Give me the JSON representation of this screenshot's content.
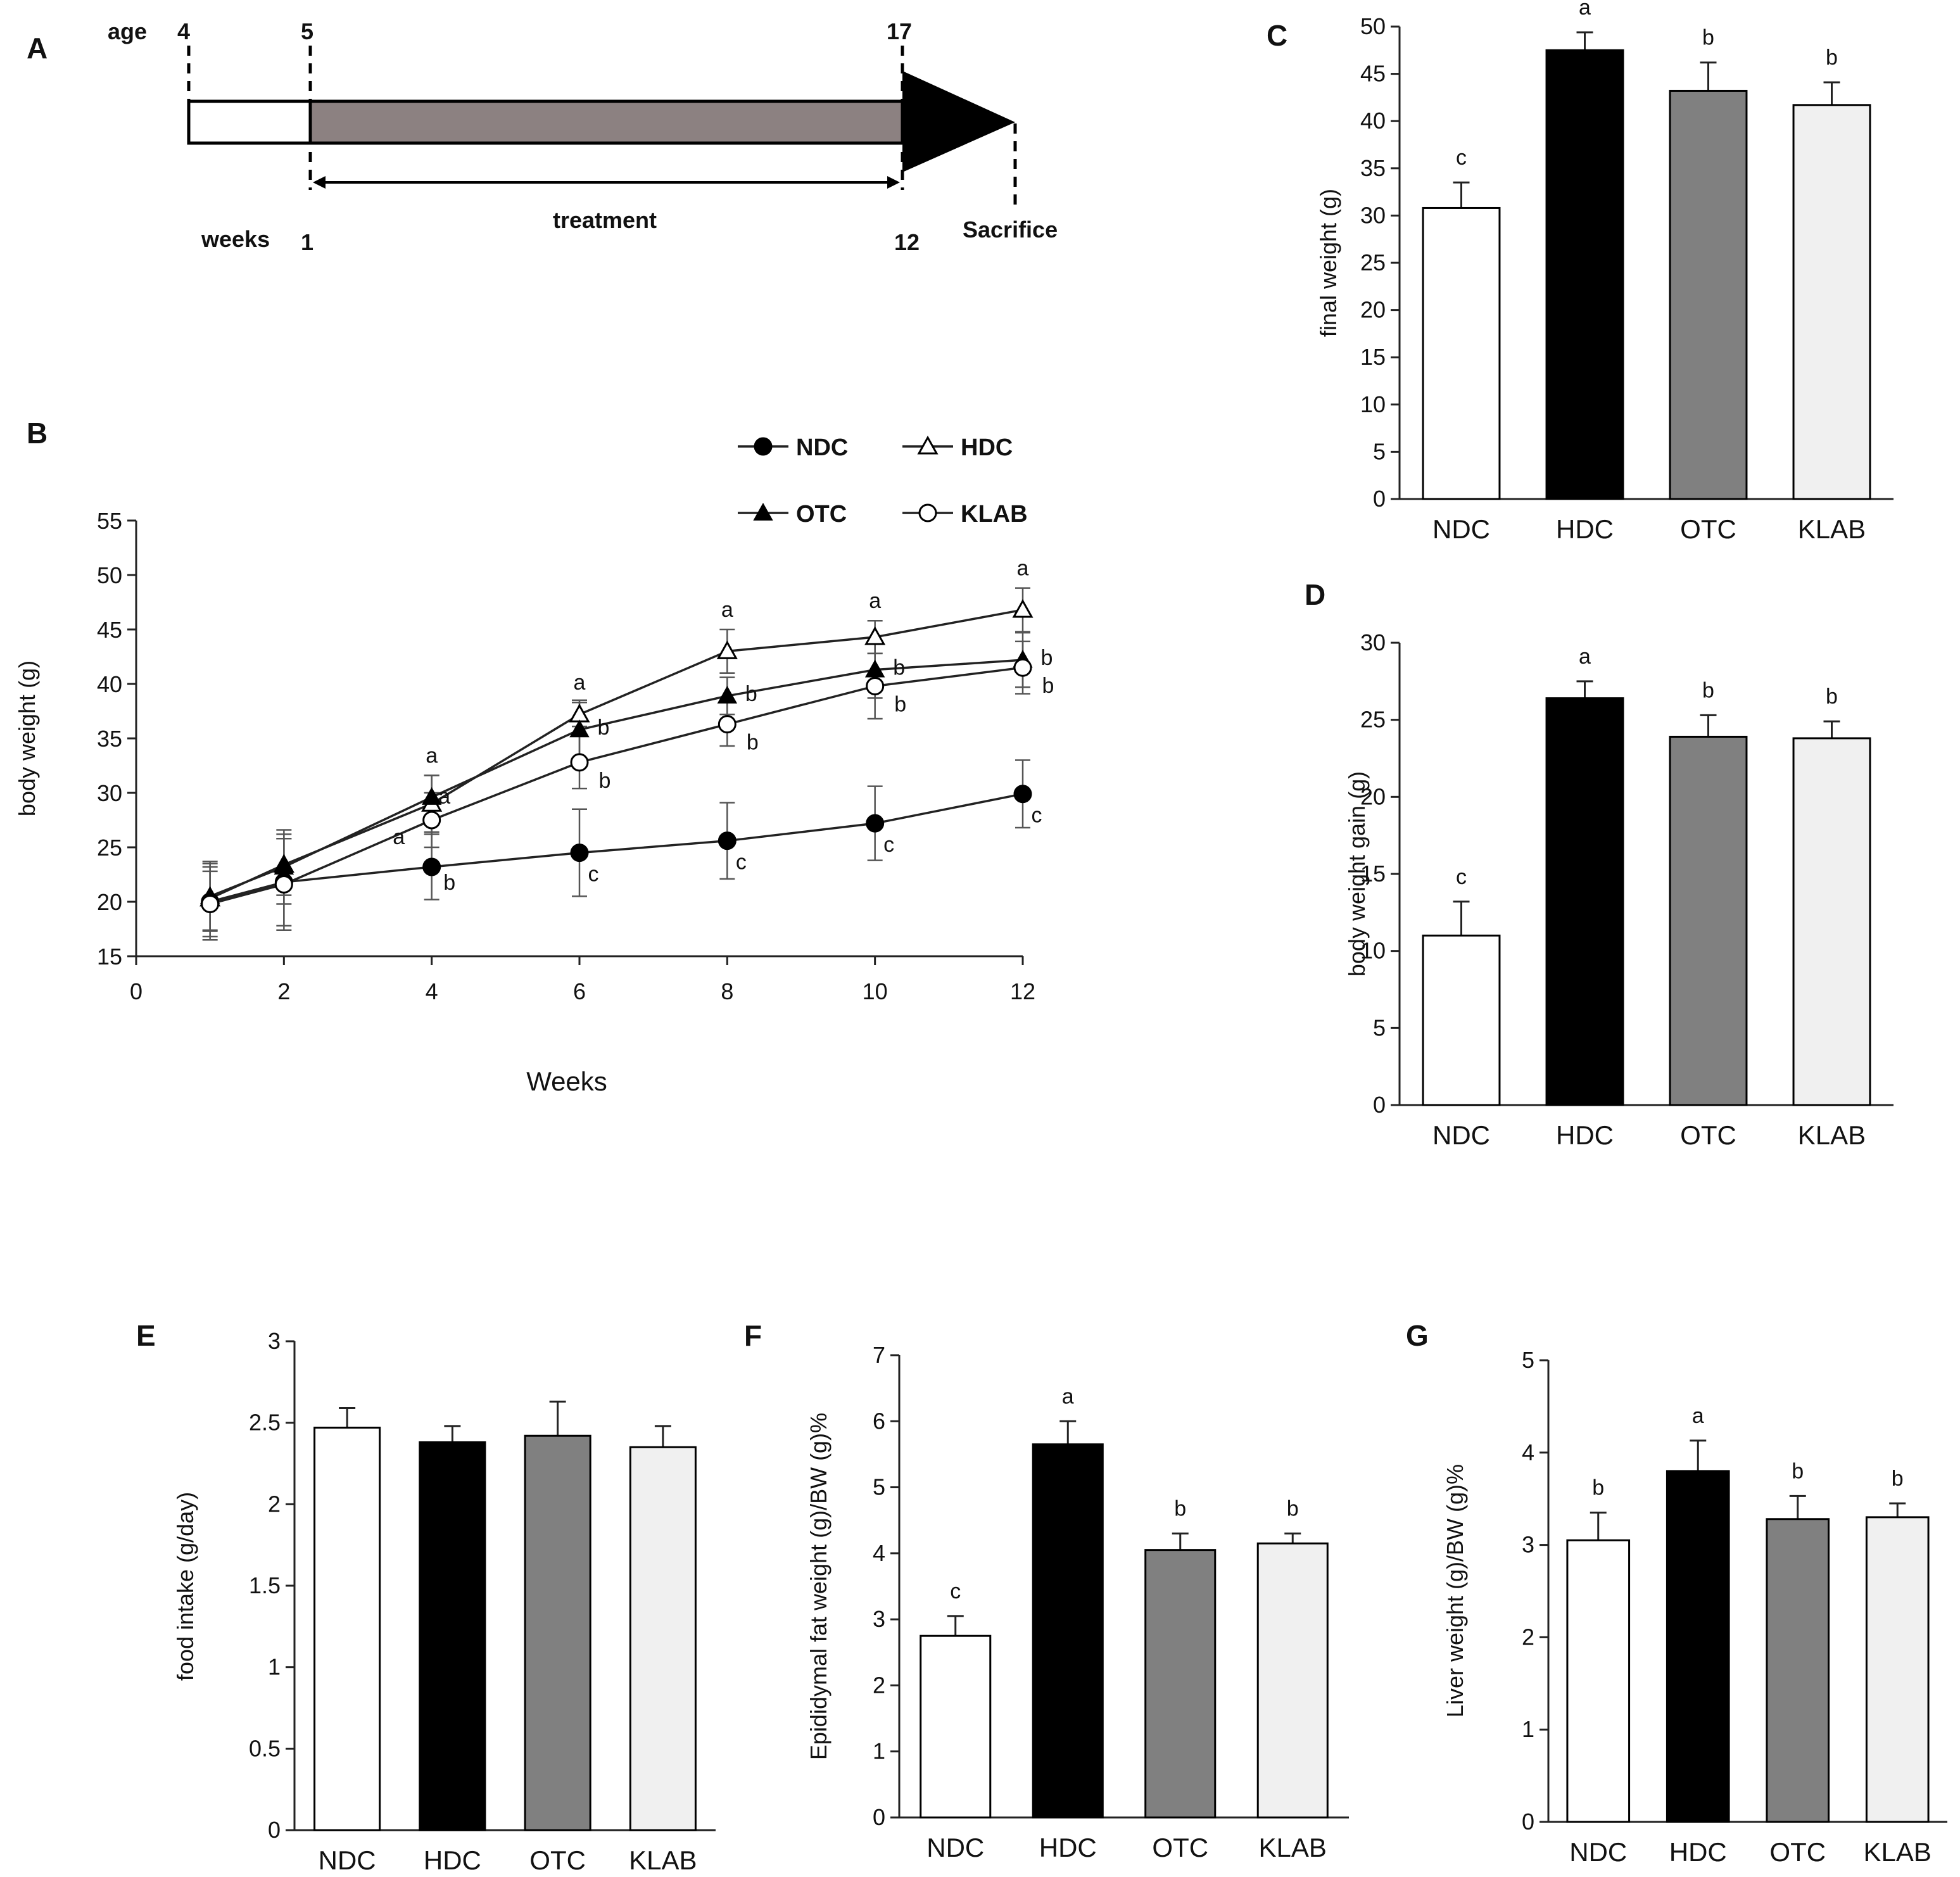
{
  "colors": {
    "NDC": "#ffffff",
    "HDC": "#000000",
    "OTC": "#808080",
    "KLAB": "#f0f0f0",
    "treatment_bar": "#8c8181"
  },
  "timeline": {
    "panel": "A",
    "age_label": "age",
    "age_start": "4",
    "age_treat": "5",
    "age_end": "17",
    "weeks_label": "weeks",
    "week_start": "1",
    "week_end": "12",
    "treatment_label": "treatment",
    "sacrifice_label": "Sacrifice"
  },
  "chart_data": [
    {
      "panel": "B",
      "type": "line",
      "xlabel": "Weeks",
      "ylabel": "body weight (g)",
      "xlim": [
        0,
        12
      ],
      "ylim": [
        15,
        55
      ],
      "xticks": [
        "0",
        "2",
        "4",
        "6",
        "8",
        "10",
        "12"
      ],
      "yticks": [
        "15",
        "20",
        "25",
        "30",
        "35",
        "40",
        "45",
        "50",
        "55"
      ],
      "x": [
        1,
        2,
        4,
        6,
        8,
        10,
        12
      ],
      "legend": [
        "NDC",
        "HDC",
        "OTC",
        "KLAB"
      ],
      "series": [
        {
          "name": "NDC",
          "marker": "circle-filled",
          "values": [
            20.0,
            21.8,
            23.2,
            24.5,
            25.6,
            27.2,
            29.9
          ],
          "err": [
            3.5,
            4.0,
            3.0,
            4.0,
            3.5,
            3.4,
            3.1
          ],
          "labels": [
            "",
            "",
            "b",
            "c",
            "c",
            "c",
            "c"
          ]
        },
        {
          "name": "HDC",
          "marker": "triangle-open",
          "values": [
            20.3,
            23.4,
            29.0,
            37.2,
            43.0,
            44.3,
            46.8
          ],
          "err": [
            2.9,
            2.8,
            2.6,
            1.1,
            2.0,
            1.5,
            2.0
          ],
          "labels": [
            "",
            "",
            "a",
            "a",
            "a",
            "a",
            "a"
          ]
        },
        {
          "name": "OTC",
          "marker": "triangle-filled",
          "values": [
            20.5,
            23.2,
            29.6,
            35.8,
            38.9,
            41.3,
            42.2
          ],
          "err": [
            3.2,
            3.4,
            2.0,
            2.7,
            1.7,
            2.6,
            2.5
          ],
          "labels": [
            "",
            "",
            "a",
            "b",
            "b",
            "b",
            "b"
          ]
        },
        {
          "name": "KLAB",
          "marker": "circle-open",
          "values": [
            19.8,
            21.6,
            27.5,
            32.8,
            36.3,
            39.8,
            41.5
          ],
          "err": [
            3.0,
            4.2,
            2.5,
            2.4,
            2.0,
            3.0,
            2.4
          ],
          "labels": [
            "",
            "",
            "a",
            "b",
            "b",
            "b",
            "b"
          ]
        }
      ]
    },
    {
      "panel": "C",
      "type": "bar",
      "ylabel": "final weight (g)",
      "categories": [
        "NDC",
        "HDC",
        "OTC",
        "KLAB"
      ],
      "values": [
        30.8,
        47.5,
        43.2,
        41.7
      ],
      "err": [
        2.7,
        1.9,
        3.0,
        2.4
      ],
      "labels": [
        "c",
        "a",
        "b",
        "b"
      ],
      "ylim": [
        0,
        50
      ],
      "ytick_step": 5,
      "yticks": [
        "0",
        "5",
        "10",
        "15",
        "20",
        "25",
        "30",
        "35",
        "40",
        "45",
        "50"
      ]
    },
    {
      "panel": "D",
      "type": "bar",
      "ylabel": "body weight gain (g)",
      "categories": [
        "NDC",
        "HDC",
        "OTC",
        "KLAB"
      ],
      "values": [
        11.0,
        26.4,
        23.9,
        23.8
      ],
      "err": [
        2.2,
        1.1,
        1.4,
        1.1
      ],
      "labels": [
        "c",
        "a",
        "b",
        "b"
      ],
      "ylim": [
        0,
        30
      ],
      "ytick_step": 5,
      "yticks": [
        "0",
        "5",
        "10",
        "15",
        "20",
        "25",
        "30"
      ]
    },
    {
      "panel": "E",
      "type": "bar",
      "ylabel": "food intake (g/day)",
      "categories": [
        "NDC",
        "HDC",
        "OTC",
        "KLAB"
      ],
      "values": [
        2.47,
        2.38,
        2.42,
        2.35
      ],
      "err": [
        0.12,
        0.1,
        0.21,
        0.13
      ],
      "labels": [
        "",
        "",
        "",
        ""
      ],
      "ylim": [
        0,
        3
      ],
      "ytick_step": 0.5,
      "yticks": [
        "0",
        "0.5",
        "1",
        "1.5",
        "2",
        "2.5",
        "3"
      ]
    },
    {
      "panel": "F",
      "type": "bar",
      "ylabel": "Epididymal fat weight (g)/BW (g)%",
      "categories": [
        "NDC",
        "HDC",
        "OTC",
        "KLAB"
      ],
      "values": [
        2.75,
        5.65,
        4.05,
        4.15
      ],
      "err": [
        0.3,
        0.35,
        0.25,
        0.15
      ],
      "labels": [
        "c",
        "a",
        "b",
        "b"
      ],
      "ylim": [
        0,
        7
      ],
      "ytick_step": 1,
      "yticks": [
        "0",
        "1",
        "2",
        "3",
        "4",
        "5",
        "6",
        "7"
      ]
    },
    {
      "panel": "G",
      "type": "bar",
      "ylabel": "Liver weight (g)/BW (g)%",
      "categories": [
        "NDC",
        "HDC",
        "OTC",
        "KLAB"
      ],
      "values": [
        3.05,
        3.8,
        3.28,
        3.3
      ],
      "err": [
        0.3,
        0.33,
        0.25,
        0.15
      ],
      "labels": [
        "b",
        "a",
        "b",
        "b"
      ],
      "ylim": [
        0,
        5
      ],
      "ytick_step": 1,
      "yticks": [
        "0",
        "1",
        "2",
        "3",
        "4",
        "5"
      ]
    }
  ]
}
